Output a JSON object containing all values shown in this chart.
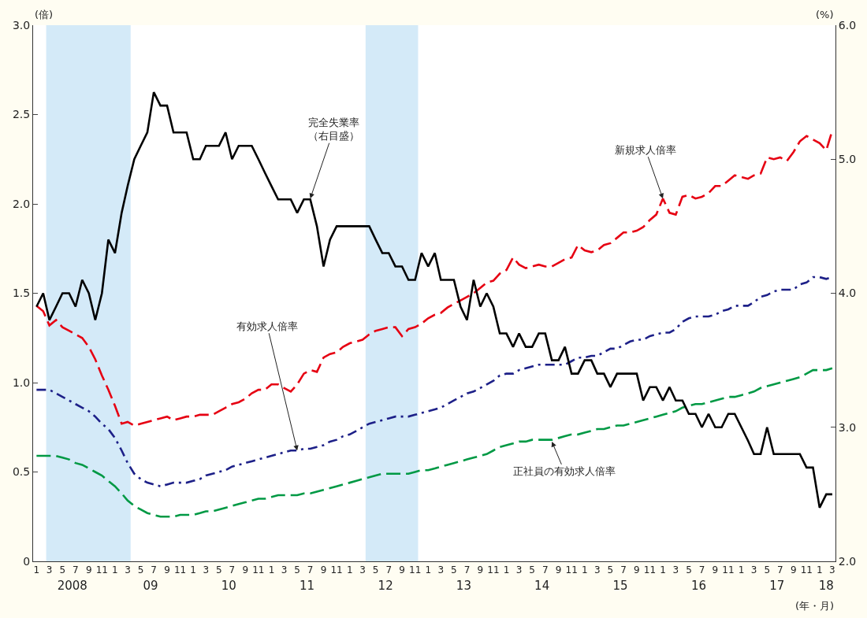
{
  "chart_data": {
    "type": "line",
    "xlabel": "(年・月)",
    "ylabel": "(倍)",
    "y2label": "(%)",
    "x": [
      "2008-01",
      "2008-02",
      "2008-03",
      "2008-04",
      "2008-05",
      "2008-06",
      "2008-07",
      "2008-08",
      "2008-09",
      "2008-10",
      "2008-11",
      "2008-12",
      "2009-01",
      "2009-02",
      "2009-03",
      "2009-04",
      "2009-05",
      "2009-06",
      "2009-07",
      "2009-08",
      "2009-09",
      "2009-10",
      "2009-11",
      "2009-12",
      "2010-01",
      "2010-02",
      "2010-03",
      "2010-04",
      "2010-05",
      "2010-06",
      "2010-07",
      "2010-08",
      "2010-09",
      "2010-10",
      "2010-11",
      "2010-12",
      "2011-01",
      "2011-02",
      "2011-03",
      "2011-04",
      "2011-05",
      "2011-06",
      "2011-07",
      "2011-08",
      "2011-09",
      "2011-10",
      "2011-11",
      "2011-12",
      "2012-01",
      "2012-02",
      "2012-03",
      "2012-04",
      "2012-05",
      "2012-06",
      "2012-07",
      "2012-08",
      "2012-09",
      "2012-10",
      "2012-11",
      "2012-12",
      "2013-01",
      "2013-02",
      "2013-03",
      "2013-04",
      "2013-05",
      "2013-06",
      "2013-07",
      "2013-08",
      "2013-09",
      "2013-10",
      "2013-11",
      "2013-12",
      "2014-01",
      "2014-02",
      "2014-03",
      "2014-04",
      "2014-05",
      "2014-06",
      "2014-07",
      "2014-08",
      "2014-09",
      "2014-10",
      "2014-11",
      "2014-12",
      "2015-01",
      "2015-02",
      "2015-03",
      "2015-04",
      "2015-05",
      "2015-06",
      "2015-07",
      "2015-08",
      "2015-09",
      "2015-10",
      "2015-11",
      "2015-12",
      "2016-01",
      "2016-02",
      "2016-03",
      "2016-04",
      "2016-05",
      "2016-06",
      "2016-07",
      "2016-08",
      "2016-09",
      "2016-10",
      "2016-11",
      "2016-12",
      "2017-01",
      "2017-02",
      "2017-03",
      "2017-04",
      "2017-05",
      "2017-06",
      "2017-07",
      "2017-08",
      "2017-09",
      "2017-10",
      "2017-11",
      "2017-12",
      "2018-01",
      "2018-02",
      "2018-03"
    ],
    "xlim": [
      "2007-12-16",
      "2018-03-16"
    ],
    "xticks": [
      {
        "value": "2008-01",
        "label": "1"
      },
      {
        "value": "2008-03",
        "label": "3"
      },
      {
        "value": "2008-05",
        "label": "5"
      },
      {
        "value": "2008-07",
        "label": "7"
      },
      {
        "value": "2008-09",
        "label": "9"
      },
      {
        "value": "2008-11",
        "label": "11"
      },
      {
        "value": "2009-01",
        "label": "1"
      },
      {
        "value": "2009-03",
        "label": "3"
      },
      {
        "value": "2009-05",
        "label": "5"
      },
      {
        "value": "2009-07",
        "label": "7"
      },
      {
        "value": "2009-09",
        "label": "9"
      },
      {
        "value": "2009-11",
        "label": "11"
      },
      {
        "value": "2010-01",
        "label": "1"
      },
      {
        "value": "2010-03",
        "label": "3"
      },
      {
        "value": "2010-05",
        "label": "5"
      },
      {
        "value": "2010-07",
        "label": "7"
      },
      {
        "value": "2010-09",
        "label": "9"
      },
      {
        "value": "2010-11",
        "label": "11"
      },
      {
        "value": "2011-01",
        "label": "1"
      },
      {
        "value": "2011-03",
        "label": "3"
      },
      {
        "value": "2011-05",
        "label": "5"
      },
      {
        "value": "2011-07",
        "label": "7"
      },
      {
        "value": "2011-09",
        "label": "9"
      },
      {
        "value": "2011-11",
        "label": "11"
      },
      {
        "value": "2012-01",
        "label": "1"
      },
      {
        "value": "2012-03",
        "label": "3"
      },
      {
        "value": "2012-05",
        "label": "5"
      },
      {
        "value": "2012-07",
        "label": "7"
      },
      {
        "value": "2012-09",
        "label": "9"
      },
      {
        "value": "2012-11",
        "label": "11"
      },
      {
        "value": "2013-01",
        "label": "1"
      },
      {
        "value": "2013-03",
        "label": "3"
      },
      {
        "value": "2013-05",
        "label": "5"
      },
      {
        "value": "2013-07",
        "label": "7"
      },
      {
        "value": "2013-09",
        "label": "9"
      },
      {
        "value": "2013-11",
        "label": "11"
      },
      {
        "value": "2014-01",
        "label": "1"
      },
      {
        "value": "2014-03",
        "label": "3"
      },
      {
        "value": "2014-05",
        "label": "5"
      },
      {
        "value": "2014-07",
        "label": "7"
      },
      {
        "value": "2014-09",
        "label": "9"
      },
      {
        "value": "2014-11",
        "label": "11"
      },
      {
        "value": "2015-01",
        "label": "1"
      },
      {
        "value": "2015-03",
        "label": "3"
      },
      {
        "value": "2015-05",
        "label": "5"
      },
      {
        "value": "2015-07",
        "label": "7"
      },
      {
        "value": "2015-09",
        "label": "9"
      },
      {
        "value": "2015-11",
        "label": "11"
      },
      {
        "value": "2016-01",
        "label": "1"
      },
      {
        "value": "2016-03",
        "label": "3"
      },
      {
        "value": "2016-05",
        "label": "5"
      },
      {
        "value": "2016-07",
        "label": "7"
      },
      {
        "value": "2016-09",
        "label": "9"
      },
      {
        "value": "2016-11",
        "label": "11"
      },
      {
        "value": "2017-01",
        "label": "1"
      },
      {
        "value": "2017-03",
        "label": "3"
      },
      {
        "value": "2017-05",
        "label": "5"
      },
      {
        "value": "2017-07",
        "label": "7"
      },
      {
        "value": "2017-09",
        "label": "9"
      },
      {
        "value": "2017-11",
        "label": "11"
      },
      {
        "value": "2018-01",
        "label": "1"
      },
      {
        "value": "2018-03",
        "label": "3"
      }
    ],
    "x2lim": [
      "2007-12-16",
      "2018-03-16"
    ],
    "x2ticks": [
      {
        "value": "2008-06-16",
        "label": "2008"
      },
      {
        "value": "2009-06-16",
        "label": "09"
      },
      {
        "value": "2010-06-16",
        "label": "10"
      },
      {
        "value": "2011-06-16",
        "label": "11"
      },
      {
        "value": "2012-06-16",
        "label": "12"
      },
      {
        "value": "2013-06-16",
        "label": "13"
      },
      {
        "value": "2014-06-16",
        "label": "14"
      },
      {
        "value": "2015-06-16",
        "label": "15"
      },
      {
        "value": "2016-06-16",
        "label": "16"
      },
      {
        "value": "2017-06-16",
        "label": "17"
      },
      {
        "value": "2018-02-01",
        "label": "18"
      }
    ],
    "ylim": [
      0,
      3
    ],
    "yticks": [
      0,
      0.5,
      {
        "value": 1,
        "label": "1.0"
      },
      1.5,
      {
        "value": 2,
        "label": "2.0"
      },
      2.5,
      {
        "value": 3,
        "label": "3.0"
      }
    ],
    "y2lim": [
      2,
      6
    ],
    "y2ticks": [
      {
        "value": 2,
        "label": "2.0"
      },
      {
        "value": 3,
        "label": "3.0"
      },
      {
        "value": 4,
        "label": "4.0"
      },
      {
        "value": 5,
        "label": "5.0"
      },
      {
        "value": 6,
        "label": "6.0"
      }
    ],
    "grid": false,
    "bands": [
      {
        "axis": "x",
        "from": "2008-02-15",
        "to": "2009-03-15",
        "color": "#d4eaf8"
      },
      {
        "axis": "x",
        "from": "2012-03-15",
        "to": "2012-11-15",
        "color": "#d4eaf8"
      }
    ],
    "series": [
      {
        "color": "#e60012",
        "line_style": "dashed",
        "values": [
          1.43,
          1.4,
          1.32,
          1.35,
          1.31,
          1.29,
          1.27,
          1.25,
          1.2,
          1.13,
          1.04,
          0.96,
          0.87,
          0.77,
          0.78,
          0.76,
          0.77,
          0.78,
          0.79,
          0.8,
          0.81,
          0.79,
          0.8,
          0.81,
          0.81,
          0.82,
          0.82,
          0.82,
          0.84,
          0.86,
          0.88,
          0.89,
          0.91,
          0.94,
          0.96,
          0.96,
          0.99,
          0.99,
          0.97,
          0.95,
          0.99,
          1.05,
          1.07,
          1.06,
          1.14,
          1.16,
          1.17,
          1.2,
          1.22,
          1.23,
          1.24,
          1.27,
          1.29,
          1.3,
          1.31,
          1.31,
          1.26,
          1.3,
          1.31,
          1.33,
          1.36,
          1.38,
          1.39,
          1.42,
          1.44,
          1.46,
          1.48,
          1.5,
          1.53,
          1.56,
          1.57,
          1.61,
          1.63,
          1.7,
          1.66,
          1.64,
          1.65,
          1.66,
          1.65,
          1.65,
          1.67,
          1.69,
          1.7,
          1.77,
          1.74,
          1.73,
          1.74,
          1.77,
          1.78,
          1.81,
          1.84,
          1.84,
          1.85,
          1.87,
          1.91,
          1.94,
          2.03,
          1.95,
          1.94,
          2.04,
          2.05,
          2.03,
          2.04,
          2.06,
          2.1,
          2.1,
          2.13,
          2.16,
          2.15,
          2.14,
          2.16,
          2.17,
          2.26,
          2.25,
          2.26,
          2.24,
          2.29,
          2.35,
          2.38,
          2.36,
          2.34,
          2.3,
          2.41
        ]
      },
      {
        "color": "#1d2088",
        "line_style": "dashdot",
        "values": [
          0.96,
          0.96,
          0.96,
          0.94,
          0.92,
          0.9,
          0.88,
          0.86,
          0.84,
          0.81,
          0.77,
          0.74,
          0.69,
          0.62,
          0.55,
          0.49,
          0.46,
          0.44,
          0.43,
          0.42,
          0.43,
          0.44,
          0.44,
          0.44,
          0.45,
          0.46,
          0.48,
          0.49,
          0.5,
          0.51,
          0.53,
          0.54,
          0.55,
          0.56,
          0.57,
          0.58,
          0.59,
          0.6,
          0.61,
          0.62,
          0.62,
          0.63,
          0.63,
          0.64,
          0.65,
          0.67,
          0.68,
          0.7,
          0.71,
          0.73,
          0.75,
          0.77,
          0.78,
          0.79,
          0.8,
          0.81,
          0.81,
          0.81,
          0.82,
          0.83,
          0.84,
          0.85,
          0.86,
          0.88,
          0.9,
          0.92,
          0.94,
          0.95,
          0.97,
          0.99,
          1.01,
          1.04,
          1.05,
          1.05,
          1.07,
          1.08,
          1.09,
          1.1,
          1.1,
          1.1,
          1.1,
          1.1,
          1.12,
          1.14,
          1.14,
          1.15,
          1.15,
          1.17,
          1.19,
          1.19,
          1.21,
          1.23,
          1.24,
          1.24,
          1.26,
          1.27,
          1.28,
          1.28,
          1.3,
          1.34,
          1.36,
          1.37,
          1.37,
          1.37,
          1.38,
          1.4,
          1.41,
          1.43,
          1.43,
          1.43,
          1.45,
          1.48,
          1.49,
          1.51,
          1.52,
          1.52,
          1.52,
          1.55,
          1.56,
          1.59,
          1.59,
          1.58,
          1.59
        ]
      },
      {
        "color": "#009944",
        "line_style": "dashed",
        "values": [
          0.59,
          0.59,
          0.59,
          0.59,
          0.58,
          0.57,
          0.55,
          0.54,
          0.52,
          0.5,
          0.48,
          0.45,
          0.42,
          0.38,
          0.34,
          0.31,
          0.29,
          0.27,
          0.26,
          0.25,
          0.25,
          0.25,
          0.26,
          0.26,
          0.26,
          0.27,
          0.28,
          0.28,
          0.29,
          0.3,
          0.31,
          0.32,
          0.33,
          0.34,
          0.35,
          0.35,
          0.36,
          0.37,
          0.37,
          0.37,
          0.37,
          0.38,
          0.38,
          0.39,
          0.4,
          0.41,
          0.42,
          0.43,
          0.44,
          0.45,
          0.46,
          0.47,
          0.48,
          0.49,
          0.49,
          0.49,
          0.49,
          0.49,
          0.5,
          0.51,
          0.51,
          0.52,
          0.53,
          0.54,
          0.55,
          0.56,
          0.57,
          0.58,
          0.59,
          0.6,
          0.62,
          0.64,
          0.65,
          0.66,
          0.67,
          0.67,
          0.68,
          0.68,
          0.68,
          0.68,
          0.69,
          0.7,
          0.71,
          0.71,
          0.72,
          0.73,
          0.74,
          0.74,
          0.75,
          0.76,
          0.76,
          0.77,
          0.78,
          0.79,
          0.8,
          0.81,
          0.82,
          0.83,
          0.84,
          0.86,
          0.87,
          0.88,
          0.88,
          0.89,
          0.9,
          0.91,
          0.92,
          0.92,
          0.93,
          0.94,
          0.95,
          0.97,
          0.98,
          0.99,
          1.0,
          1.01,
          1.02,
          1.03,
          1.05,
          1.07,
          1.07,
          1.07,
          1.08
        ]
      },
      {
        "color": "#000000",
        "line_style": "solid",
        "axis": "y2",
        "values": [
          3.9,
          4.0,
          3.8,
          3.9,
          4.0,
          4.0,
          3.9,
          4.1,
          4.0,
          3.8,
          4.0,
          4.4,
          4.3,
          4.6,
          4.8,
          5.0,
          5.1,
          5.2,
          5.5,
          5.4,
          5.4,
          5.2,
          5.2,
          5.2,
          5.0,
          5.0,
          5.1,
          5.1,
          5.1,
          5.2,
          5.0,
          5.1,
          5.1,
          5.1,
          5.0,
          4.9,
          4.8,
          4.7,
          4.7,
          4.7,
          4.6,
          4.7,
          4.7,
          4.5,
          4.2,
          4.4,
          4.5,
          4.5,
          4.5,
          4.5,
          4.5,
          4.5,
          4.4,
          4.3,
          4.3,
          4.2,
          4.2,
          4.1,
          4.1,
          4.3,
          4.2,
          4.3,
          4.1,
          4.1,
          4.1,
          3.9,
          3.8,
          4.1,
          3.9,
          4.0,
          3.9,
          3.7,
          3.7,
          3.6,
          3.7,
          3.6,
          3.6,
          3.7,
          3.7,
          3.5,
          3.5,
          3.6,
          3.4,
          3.4,
          3.5,
          3.5,
          3.4,
          3.4,
          3.3,
          3.4,
          3.4,
          3.4,
          3.4,
          3.2,
          3.3,
          3.3,
          3.2,
          3.3,
          3.2,
          3.2,
          3.1,
          3.1,
          3.0,
          3.1,
          3.0,
          3.0,
          3.1,
          3.1,
          3.0,
          2.9,
          2.8,
          2.8,
          3.0,
          2.8,
          2.8,
          2.8,
          2.8,
          2.8,
          2.7,
          2.7,
          2.4,
          2.5,
          2.5
        ]
      }
    ],
    "annotations": [
      {
        "text": "完全失業率（右目盛）",
        "x": "2011-07",
        "y": 2.03
      },
      {
        "text": "新規求人倍率",
        "x": "2016-01",
        "y": 2.03
      },
      {
        "text": "有効求人倍率",
        "x": "2011-05",
        "y": 0.62
      },
      {
        "text": "正社員の有効求人倍率",
        "x": "2014-08",
        "y": 0.67
      }
    ]
  }
}
